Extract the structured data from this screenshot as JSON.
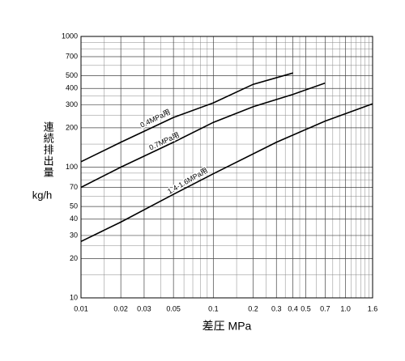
{
  "chart_data": {
    "type": "line",
    "xlabel": "差圧 MPa",
    "ylabel": "連続排出量",
    "yunit": "kg/h",
    "xscale": "log",
    "yscale": "log",
    "grid": true,
    "xlim": [
      0.01,
      1.6
    ],
    "ylim": [
      10,
      1000
    ],
    "xticks": [
      0.01,
      0.02,
      0.03,
      0.05,
      0.1,
      0.2,
      0.3,
      0.4,
      0.5,
      0.7,
      {
        "value": 1,
        "label": "1.0"
      },
      1.6
    ],
    "yticks": [
      10,
      20,
      30,
      40,
      50,
      70,
      100,
      200,
      300,
      400,
      500,
      700,
      1000
    ],
    "xminorticks": [
      0.015,
      0.04,
      0.06,
      0.07,
      0.08,
      0.09,
      0.15,
      0.25,
      0.35,
      0.45,
      0.6,
      0.8,
      0.9,
      1.1,
      1.2,
      1.3,
      1.4,
      1.5
    ],
    "yminorticks": [
      15,
      25,
      60,
      80,
      90,
      150,
      250,
      350,
      600,
      800,
      900
    ],
    "series": [
      {
        "name": "0.4MPa用",
        "color": "#000000",
        "x": [
          0.01,
          0.02,
          0.05,
          0.1,
          0.2,
          0.4
        ],
        "values": [
          110,
          155,
          240,
          310,
          430,
          525
        ]
      },
      {
        "name": "0.7MPa用",
        "color": "#000000",
        "x": [
          0.01,
          0.02,
          0.05,
          0.1,
          0.2,
          0.4,
          0.7
        ],
        "values": [
          70,
          100,
          155,
          220,
          290,
          360,
          440
        ]
      },
      {
        "name": "1.4-1.6MPa用",
        "color": "#000000",
        "x": [
          0.01,
          0.02,
          0.05,
          0.1,
          0.3,
          0.7,
          1.6
        ],
        "values": [
          27,
          38,
          62,
          89,
          155,
          225,
          305
        ]
      }
    ]
  }
}
